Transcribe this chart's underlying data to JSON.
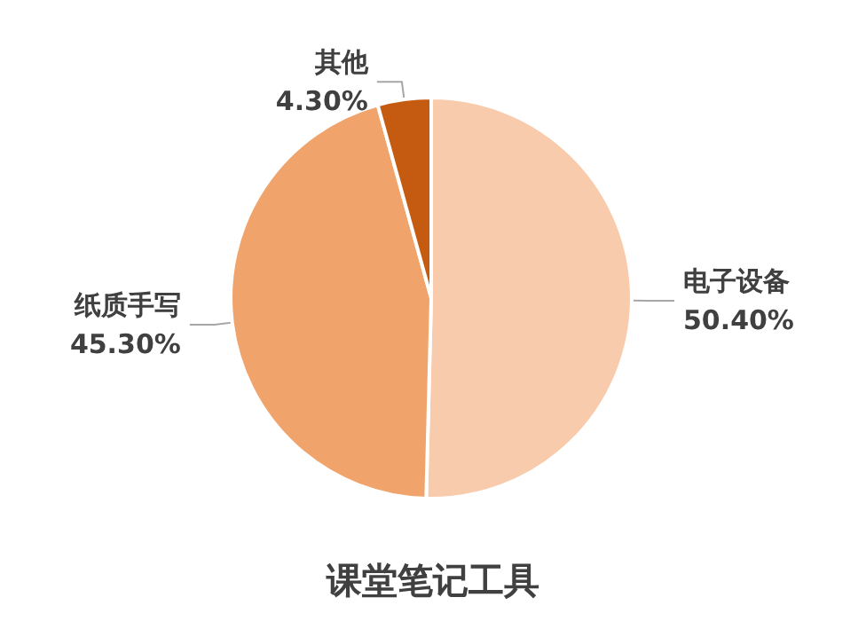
{
  "chart_data": {
    "type": "pie",
    "title": "课堂笔记工具",
    "categories": [
      "电子设备",
      "纸质手写",
      "其他"
    ],
    "values": [
      50.4,
      45.3,
      4.3
    ],
    "value_labels": [
      "50.40%",
      "45.30%",
      "4.30%"
    ],
    "colors": [
      "#f8cbad",
      "#f0a46c",
      "#c55a11"
    ],
    "legend": false
  }
}
